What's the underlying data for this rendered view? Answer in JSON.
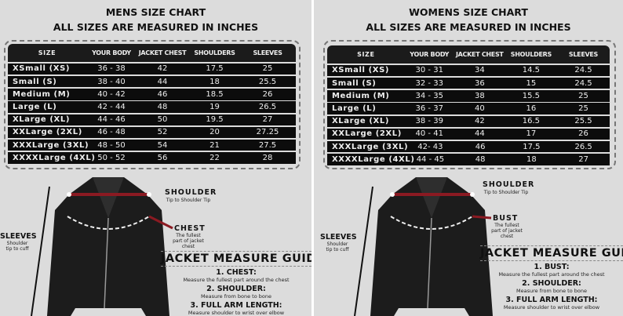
{
  "columns": [
    "SIZE",
    "YOUR BODY",
    "JACKET CHEST",
    "SHOULDERS",
    "SLEEVES"
  ],
  "panels": [
    {
      "title": "MENS SIZE CHART",
      "subtitle": "ALL SIZES ARE MEASURED IN INCHES",
      "rows": [
        [
          "XSmall (XS)",
          "36 - 38",
          "42",
          "17.5",
          "25"
        ],
        [
          "Small (S)",
          "38 - 40",
          "44",
          "18",
          "25.5"
        ],
        [
          "Medium (M)",
          "40 - 42",
          "46",
          "18.5",
          "26"
        ],
        [
          "Large (L)",
          "42 - 44",
          "48",
          "19",
          "26.5"
        ],
        [
          "XLarge (XL)",
          "44 - 46",
          "50",
          "19.5",
          "27"
        ],
        [
          "XXLarge (2XL)",
          "46 - 48",
          "52",
          "20",
          "27.25"
        ],
        [
          "XXXLarge (3XL)",
          "48 - 50",
          "54",
          "21",
          "27.5"
        ],
        [
          "XXXXLarge (4XL)",
          "50 - 52",
          "56",
          "22",
          "28"
        ]
      ],
      "shoulder": "SHOULDER",
      "shoulder_desc": "Tip to Shoulder Tip",
      "chest": "CHEST",
      "chest_desc": "The fullest part of jacket chest",
      "sleeves": "SLEEVES",
      "sleeves_desc": "Shoulder tip to cuff",
      "guide_title": "JACKET MEASURE GUIDE",
      "guide": [
        {
          "h": "1. CHEST:",
          "d": "Measure the fullest part around the chest"
        },
        {
          "h": "2. SHOULDER:",
          "d": "Measure from bone to bone"
        },
        {
          "h": "3. FULL ARM LENGTH:",
          "d": "Measure shoulder to wrist over elbow"
        }
      ]
    },
    {
      "title": "WOMENS SIZE CHART",
      "subtitle": "ALL SIZES ARE MEASURED IN INCHES",
      "rows": [
        [
          "XSmall (XS)",
          "30 - 31",
          "34",
          "14.5",
          "24.5"
        ],
        [
          "Small (S)",
          "32 - 33",
          "36",
          "15",
          "24.5"
        ],
        [
          "Medium (M)",
          "34 - 35",
          "38",
          "15.5",
          "25"
        ],
        [
          "Large (L)",
          "36 - 37",
          "40",
          "16",
          "25"
        ],
        [
          "XLarge (XL)",
          "38 - 39",
          "42",
          "16.5",
          "25.5"
        ],
        [
          "XXLarge (2XL)",
          "40 - 41",
          "44",
          "17",
          "26"
        ],
        [
          "XXXLarge (3XL)",
          "42- 43",
          "46",
          "17.5",
          "26.5"
        ],
        [
          "XXXXLarge (4XL)",
          "44 - 45",
          "48",
          "18",
          "27"
        ]
      ],
      "shoulder": "SHOULDER",
      "shoulder_desc": "Tip to Shoulder Tip",
      "chest": "BUST",
      "chest_desc": "The fullest part of jacket chest",
      "sleeves": "SLEEVES",
      "sleeves_desc": "Shoulder tip to cuff",
      "guide_title": "JACKET MEASURE GUIDE",
      "guide": [
        {
          "h": "1. BUST:",
          "d": "Measure the fullest part around the chest"
        },
        {
          "h": "2. SHOULDER:",
          "d": "Measure from bone to bone"
        },
        {
          "h": "3. FULL ARM LENGTH:",
          "d": "Measure shoulder to wrist over elbow"
        }
      ]
    }
  ],
  "colors": {
    "background": "#dcdcdc",
    "table": "#0c0c0c",
    "measure_line": "#8b1a22"
  }
}
